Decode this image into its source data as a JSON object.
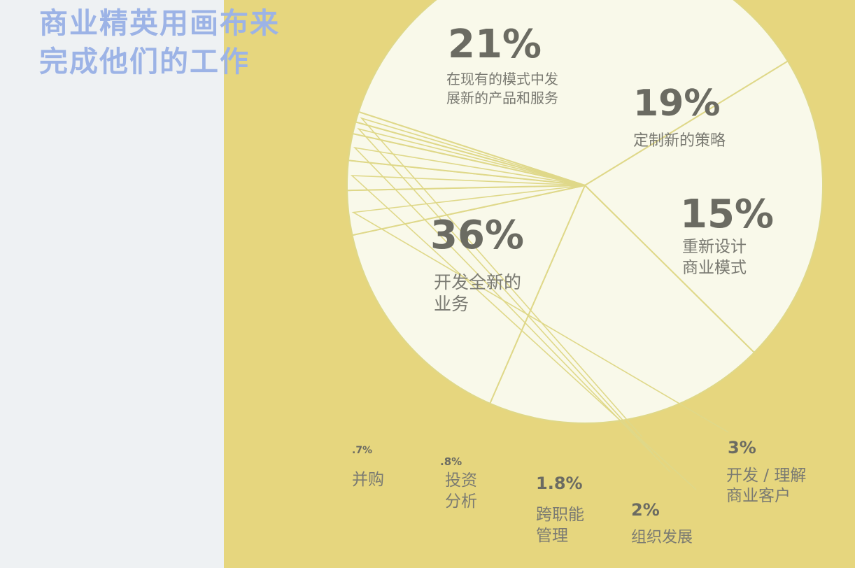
{
  "title_lines": [
    "商业精英用画布来",
    "完成他们的工作"
  ],
  "colors": {
    "background_left": "#eef1f3",
    "background_right": "#e6d67e",
    "pie_fill": "#f9f9ea",
    "divider": "#dfd889",
    "title": "#9cb3e6",
    "text": "#6b6b62"
  },
  "chart_data": {
    "type": "pie",
    "title": "商业精英用画布来完成他们的工作",
    "unit": "%",
    "slices": [
      {
        "value": 36,
        "value_label": "36%",
        "label_lines": [
          "开发全新的",
          "业务"
        ]
      },
      {
        "value": 21,
        "value_label": "21%",
        "label_lines": [
          "在现有的模式中发",
          "展新的产品和服务"
        ]
      },
      {
        "value": 19,
        "value_label": "19%",
        "label_lines": [
          "定制新的策略"
        ]
      },
      {
        "value": 15,
        "value_label": "15%",
        "label_lines": [
          "重新设计",
          "商业模式"
        ]
      },
      {
        "value": 3,
        "value_label": "3%",
        "label_lines": [
          "开发 / 理解",
          "商业客户"
        ]
      },
      {
        "value": 2,
        "value_label": "2%",
        "label_lines": [
          "组织发展"
        ]
      },
      {
        "value": 1.8,
        "value_label": "1.8%",
        "label_lines": [
          "跨职能",
          "管理"
        ]
      },
      {
        "value": 0.8,
        "value_label": ".8%",
        "label_lines": [
          "投资",
          "分析"
        ]
      },
      {
        "value": 0.7,
        "value_label": ".7%",
        "label_lines": [
          "并购"
        ]
      }
    ],
    "legend": "none"
  }
}
